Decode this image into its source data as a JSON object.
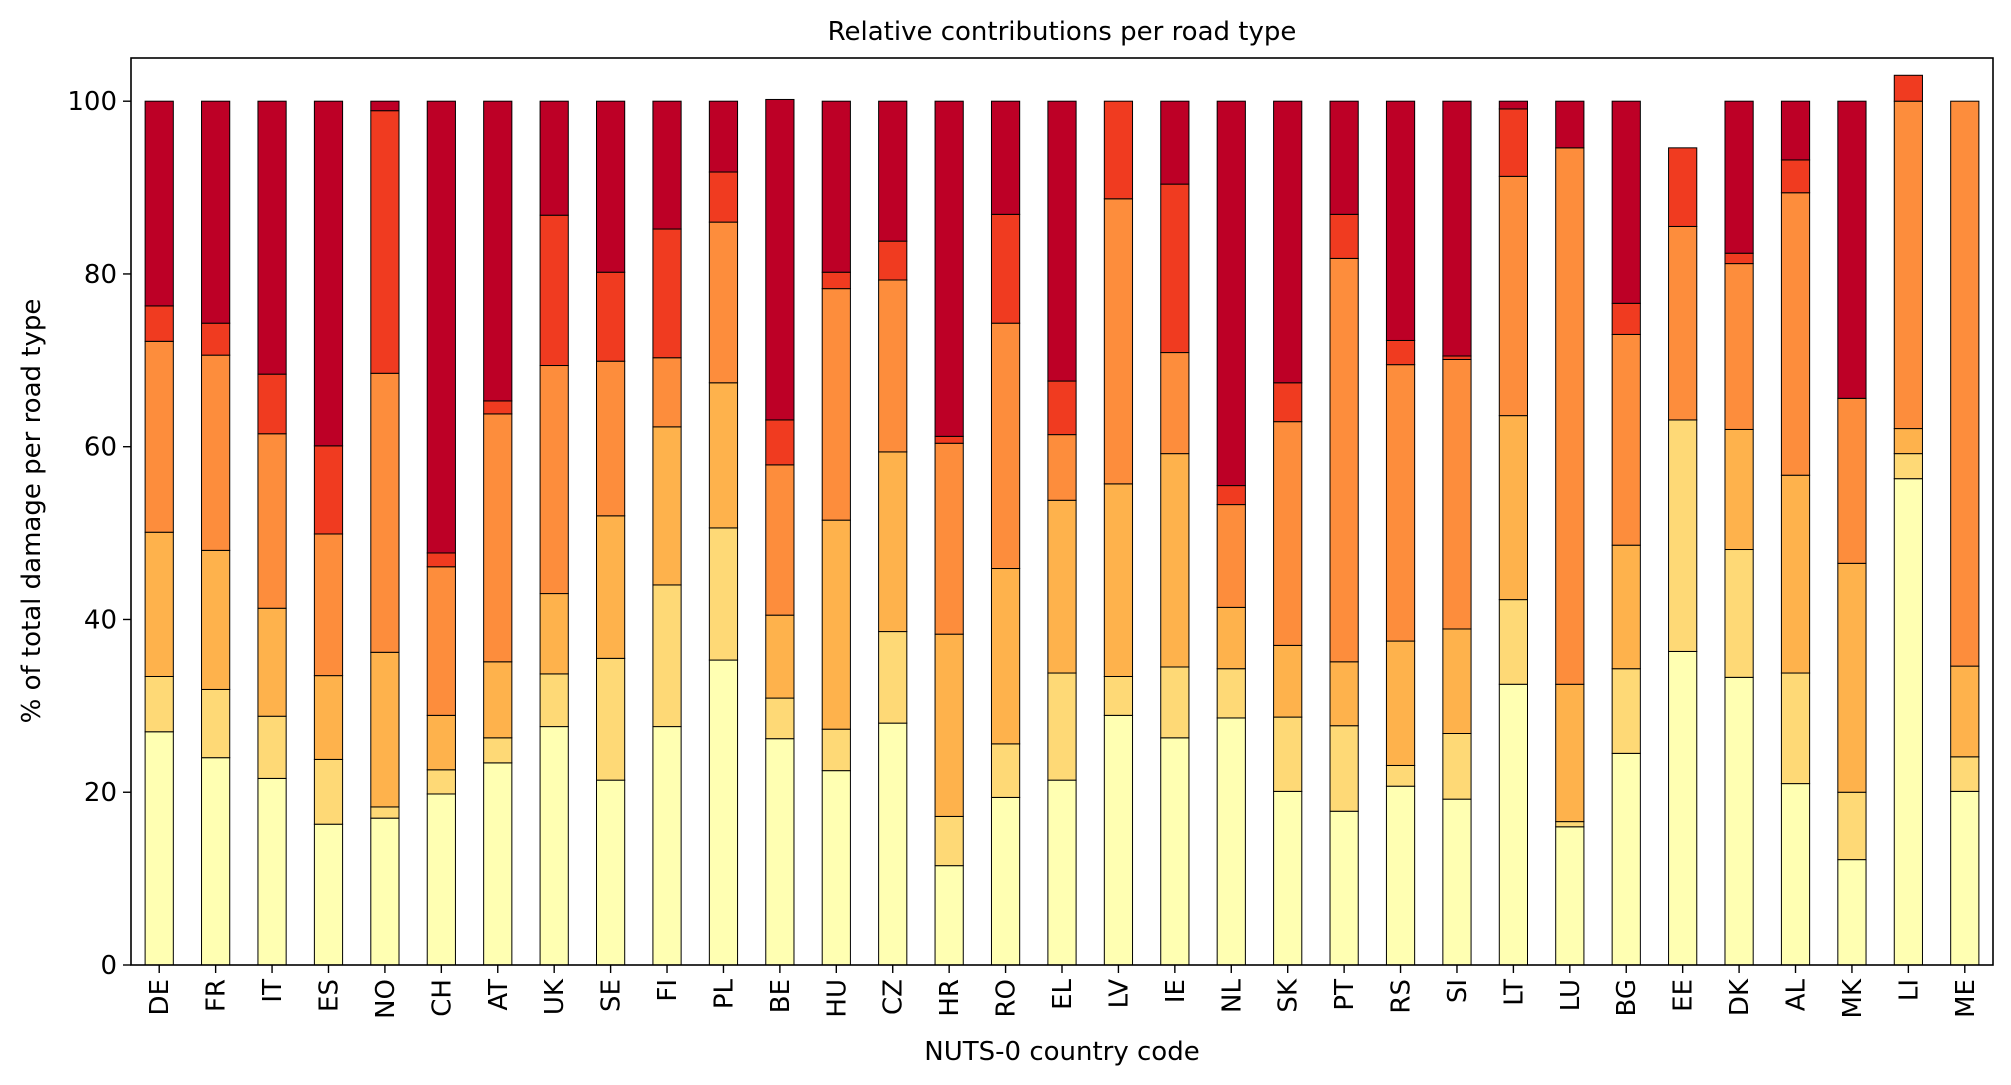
{
  "chart_data": {
    "type": "bar",
    "stacked": true,
    "title": "Relative contributions per road type",
    "xlabel": "NUTS-0 country code",
    "ylabel": "% of total damage per road type",
    "ylim": [
      0,
      105
    ],
    "yticks": [
      0,
      20,
      40,
      60,
      80,
      100
    ],
    "grid": false,
    "legend": "none",
    "categories": [
      "DE",
      "FR",
      "IT",
      "ES",
      "NO",
      "CH",
      "AT",
      "UK",
      "SE",
      "FI",
      "PL",
      "BE",
      "HU",
      "CZ",
      "HR",
      "RO",
      "EL",
      "LV",
      "IE",
      "NL",
      "SK",
      "PT",
      "RS",
      "SI",
      "LT",
      "LU",
      "BG",
      "EE",
      "DK",
      "AL",
      "MK",
      "LI",
      "ME"
    ],
    "series": [
      {
        "color": "#ffffb2",
        "values": [
          27,
          24,
          21.6,
          16.3,
          17,
          19.8,
          23.4,
          27.6,
          21.4,
          27.6,
          35.3,
          26.2,
          22.5,
          28,
          11.5,
          19.4,
          21.4,
          28.9,
          26.3,
          28.6,
          20.1,
          17.8,
          20.7,
          19.2,
          32.5,
          16,
          24.5,
          36.3,
          33.3,
          21,
          12.2,
          56.3,
          20.1
        ]
      },
      {
        "color": "#fed976",
        "values": [
          6.4,
          7.9,
          7.2,
          7.5,
          1.3,
          2.8,
          2.9,
          6.1,
          14.1,
          16.4,
          15.3,
          4.7,
          4.8,
          10.6,
          5.7,
          6.2,
          12.4,
          4.5,
          8.2,
          5.7,
          8.6,
          9.9,
          2.4,
          7.6,
          9.8,
          0.6,
          9.8,
          26.8,
          14.8,
          12.8,
          7.8,
          2.9,
          4
        ]
      },
      {
        "color": "#feb24c",
        "values": [
          16.7,
          16.1,
          12.5,
          9.7,
          17.9,
          6.3,
          8.8,
          9.3,
          16.5,
          18.3,
          16.8,
          9.6,
          24.2,
          20.8,
          21.1,
          20.3,
          20,
          22.3,
          24.7,
          7.1,
          8.3,
          7.4,
          14.4,
          12.1,
          21.3,
          15.9,
          14.3,
          0,
          13.9,
          22.9,
          26.5,
          2.9,
          10.5
        ]
      },
      {
        "color": "#fd8d3c",
        "values": [
          22.1,
          22.6,
          20.2,
          16.4,
          32.3,
          17.2,
          28.7,
          26.4,
          17.9,
          8,
          18.6,
          17.4,
          26.8,
          19.9,
          22.1,
          28.4,
          7.6,
          33,
          11.7,
          11.9,
          25.9,
          46.7,
          32,
          31.2,
          27.7,
          62.1,
          24.4,
          22.4,
          19.2,
          32.7,
          19.1,
          37.9,
          65.4
        ]
      },
      {
        "color": "#f03b20",
        "values": [
          4.1,
          3.7,
          6.9,
          10.2,
          30.4,
          1.6,
          1.5,
          17.4,
          10.3,
          14.9,
          5.8,
          5.2,
          1.9,
          4.5,
          0.8,
          12.6,
          6.2,
          11.3,
          19.5,
          2.2,
          4.5,
          5.1,
          2.8,
          0.4,
          7.8,
          0,
          3.6,
          9.1,
          1.2,
          3.8,
          0,
          3,
          0
        ]
      },
      {
        "color": "#bd0026",
        "values": [
          23.7,
          25.7,
          31.6,
          39.9,
          1.1,
          52.3,
          34.7,
          13.2,
          19.8,
          14.8,
          8.2,
          37.1,
          19.8,
          16.2,
          38.8,
          13.1,
          32.4,
          0,
          9.6,
          44.5,
          32.6,
          13.1,
          27.7,
          29.5,
          0.9,
          5.4,
          23.4,
          0,
          17.6,
          6.8,
          34.4,
          0,
          0
        ]
      }
    ]
  }
}
